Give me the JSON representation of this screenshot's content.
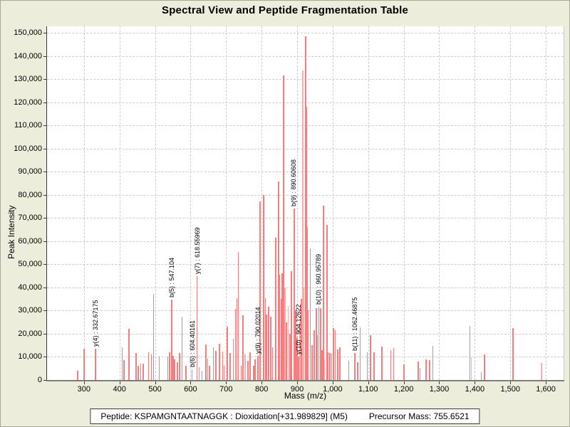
{
  "title": "Spectral View and Peptide Fragmentation Table",
  "footer": {
    "peptide_label": "Peptide: KSPAMGNTAATNAGGK : Dioxidation[+31.989829] (M5)",
    "precursor_label": "Precursor Mass: 755.6521"
  },
  "chart_data": {
    "type": "bar",
    "title": "Spectral View and Peptide Fragmentation Table",
    "xlabel": "Mass (m/z)",
    "ylabel": "Peak Intensity",
    "xlim": [
      196,
      1650
    ],
    "ylim": [
      0,
      152800
    ],
    "x_ticks": [
      300,
      400,
      500,
      600,
      700,
      800,
      900,
      1000,
      1100,
      1200,
      1300,
      1400,
      1500,
      1600
    ],
    "y_ticks": [
      0,
      10000,
      20000,
      30000,
      40000,
      50000,
      60000,
      70000,
      80000,
      90000,
      100000,
      110000,
      120000,
      130000,
      140000,
      150000
    ],
    "grid": true,
    "legend_position": "none",
    "colors": {
      "peak": "#f57d7d",
      "peak_light": "#f5aeae",
      "grid": "#cdcdcd",
      "background": "#EDEDDC",
      "plot_background": "#ffffff",
      "axis": "#3a3a3a"
    },
    "annotations": [
      {
        "label": "y(4) : 332.67175",
        "mz": 332.67175,
        "intensity": 13500
      },
      {
        "label": "b(5) : 547.104",
        "mz": 547.104,
        "intensity": 34800
      },
      {
        "label": "b(6) : 604.40161",
        "mz": 604.40161,
        "intensity": 4600
      },
      {
        "label": "y(7) : 618.55969",
        "mz": 618.55969,
        "intensity": 44900
      },
      {
        "label": "y(9) : 790.02014",
        "mz": 790.02014,
        "intensity": 10400
      },
      {
        "label": "b(9) : 890.60608",
        "mz": 890.60608,
        "intensity": 74000
      },
      {
        "label": "y(10) : 904.12622",
        "mz": 904.12622,
        "intensity": 10000
      },
      {
        "label": "b(10) : 960.95789",
        "mz": 960.95789,
        "intensity": 31700
      },
      {
        "label": "b(11) : 1062.46875",
        "mz": 1062.46875,
        "intensity": 11700
      }
    ],
    "peaks": [
      [
        282,
        4000
      ],
      [
        300,
        13500
      ],
      [
        332.67175,
        13500
      ],
      [
        408,
        14000
      ],
      [
        413,
        8600
      ],
      [
        427,
        22000
      ],
      [
        447,
        11700
      ],
      [
        453,
        6000
      ],
      [
        460,
        7000
      ],
      [
        467,
        7200
      ],
      [
        482,
        12000
      ],
      [
        490,
        11000
      ],
      [
        496,
        37300
      ],
      [
        512,
        10200
      ],
      [
        536,
        10000
      ],
      [
        541,
        12000
      ],
      [
        547.104,
        34800
      ],
      [
        551,
        10500
      ],
      [
        555,
        9000
      ],
      [
        563,
        7600
      ],
      [
        569,
        11700
      ],
      [
        576,
        27500
      ],
      [
        587,
        6100
      ],
      [
        604.40161,
        4600
      ],
      [
        618.55969,
        44900
      ],
      [
        624,
        5500
      ],
      [
        632,
        4000
      ],
      [
        643,
        15300
      ],
      [
        648,
        9200
      ],
      [
        653,
        6200
      ],
      [
        664,
        14200
      ],
      [
        671,
        12700
      ],
      [
        681,
        15800
      ],
      [
        690,
        12200
      ],
      [
        694,
        6100
      ],
      [
        703,
        23000
      ],
      [
        711,
        11700
      ],
      [
        720,
        17800
      ],
      [
        726,
        30700
      ],
      [
        730,
        35300
      ],
      [
        734,
        55300
      ],
      [
        743,
        6100
      ],
      [
        748,
        28000
      ],
      [
        754,
        11000,
        1
      ],
      [
        762,
        8400
      ],
      [
        768,
        12100
      ],
      [
        778,
        6200
      ],
      [
        782,
        8800
      ],
      [
        790.02014,
        10400
      ],
      [
        796,
        77300
      ],
      [
        805,
        79900
      ],
      [
        811,
        35300
      ],
      [
        814,
        28400
      ],
      [
        820,
        31600
      ],
      [
        826,
        27300
      ],
      [
        831,
        14200
      ],
      [
        840,
        61400
      ],
      [
        847,
        85800
      ],
      [
        851,
        45500
      ],
      [
        855,
        35000
      ],
      [
        858,
        46000
      ],
      [
        862,
        131600
      ],
      [
        866,
        40000,
        1
      ],
      [
        870,
        25000
      ],
      [
        875,
        32000,
        1
      ],
      [
        880,
        20000
      ],
      [
        884,
        47000
      ],
      [
        890.60608,
        74000
      ],
      [
        896,
        30000
      ],
      [
        900,
        18000
      ],
      [
        904.12622,
        10000
      ],
      [
        908,
        25000,
        1
      ],
      [
        912,
        35000
      ],
      [
        915,
        133600,
        1
      ],
      [
        919,
        40000,
        1
      ],
      [
        923,
        148500
      ],
      [
        925,
        118000
      ],
      [
        928,
        66000
      ],
      [
        931,
        30000
      ],
      [
        937,
        57000
      ],
      [
        942,
        15000
      ],
      [
        948,
        21500
      ],
      [
        954,
        31000
      ],
      [
        957,
        19400
      ],
      [
        960.95789,
        31700
      ],
      [
        966,
        31000
      ],
      [
        970,
        13000
      ],
      [
        974,
        75300
      ],
      [
        977,
        9000,
        1
      ],
      [
        983,
        67000
      ],
      [
        987,
        12000
      ],
      [
        992,
        11800
      ],
      [
        997,
        11500
      ],
      [
        1002,
        22300
      ],
      [
        1007,
        21600
      ],
      [
        1014,
        13300
      ],
      [
        1020,
        14200
      ],
      [
        1045,
        8400
      ],
      [
        1062.46875,
        11700
      ],
      [
        1070,
        7700
      ],
      [
        1077,
        22900
      ],
      [
        1097,
        11900
      ],
      [
        1107,
        19500
      ],
      [
        1117,
        12100
      ],
      [
        1139,
        14500
      ],
      [
        1164,
        13000
      ],
      [
        1172,
        13700
      ],
      [
        1201,
        6700
      ],
      [
        1241,
        8000
      ],
      [
        1246,
        5200
      ],
      [
        1263,
        8900
      ],
      [
        1273,
        8500
      ],
      [
        1282,
        14800
      ],
      [
        1386,
        23300
      ],
      [
        1390,
        9800,
        1
      ],
      [
        1418,
        3300
      ],
      [
        1427,
        11200
      ],
      [
        1508,
        22500
      ],
      [
        1588,
        7400,
        1
      ]
    ]
  }
}
